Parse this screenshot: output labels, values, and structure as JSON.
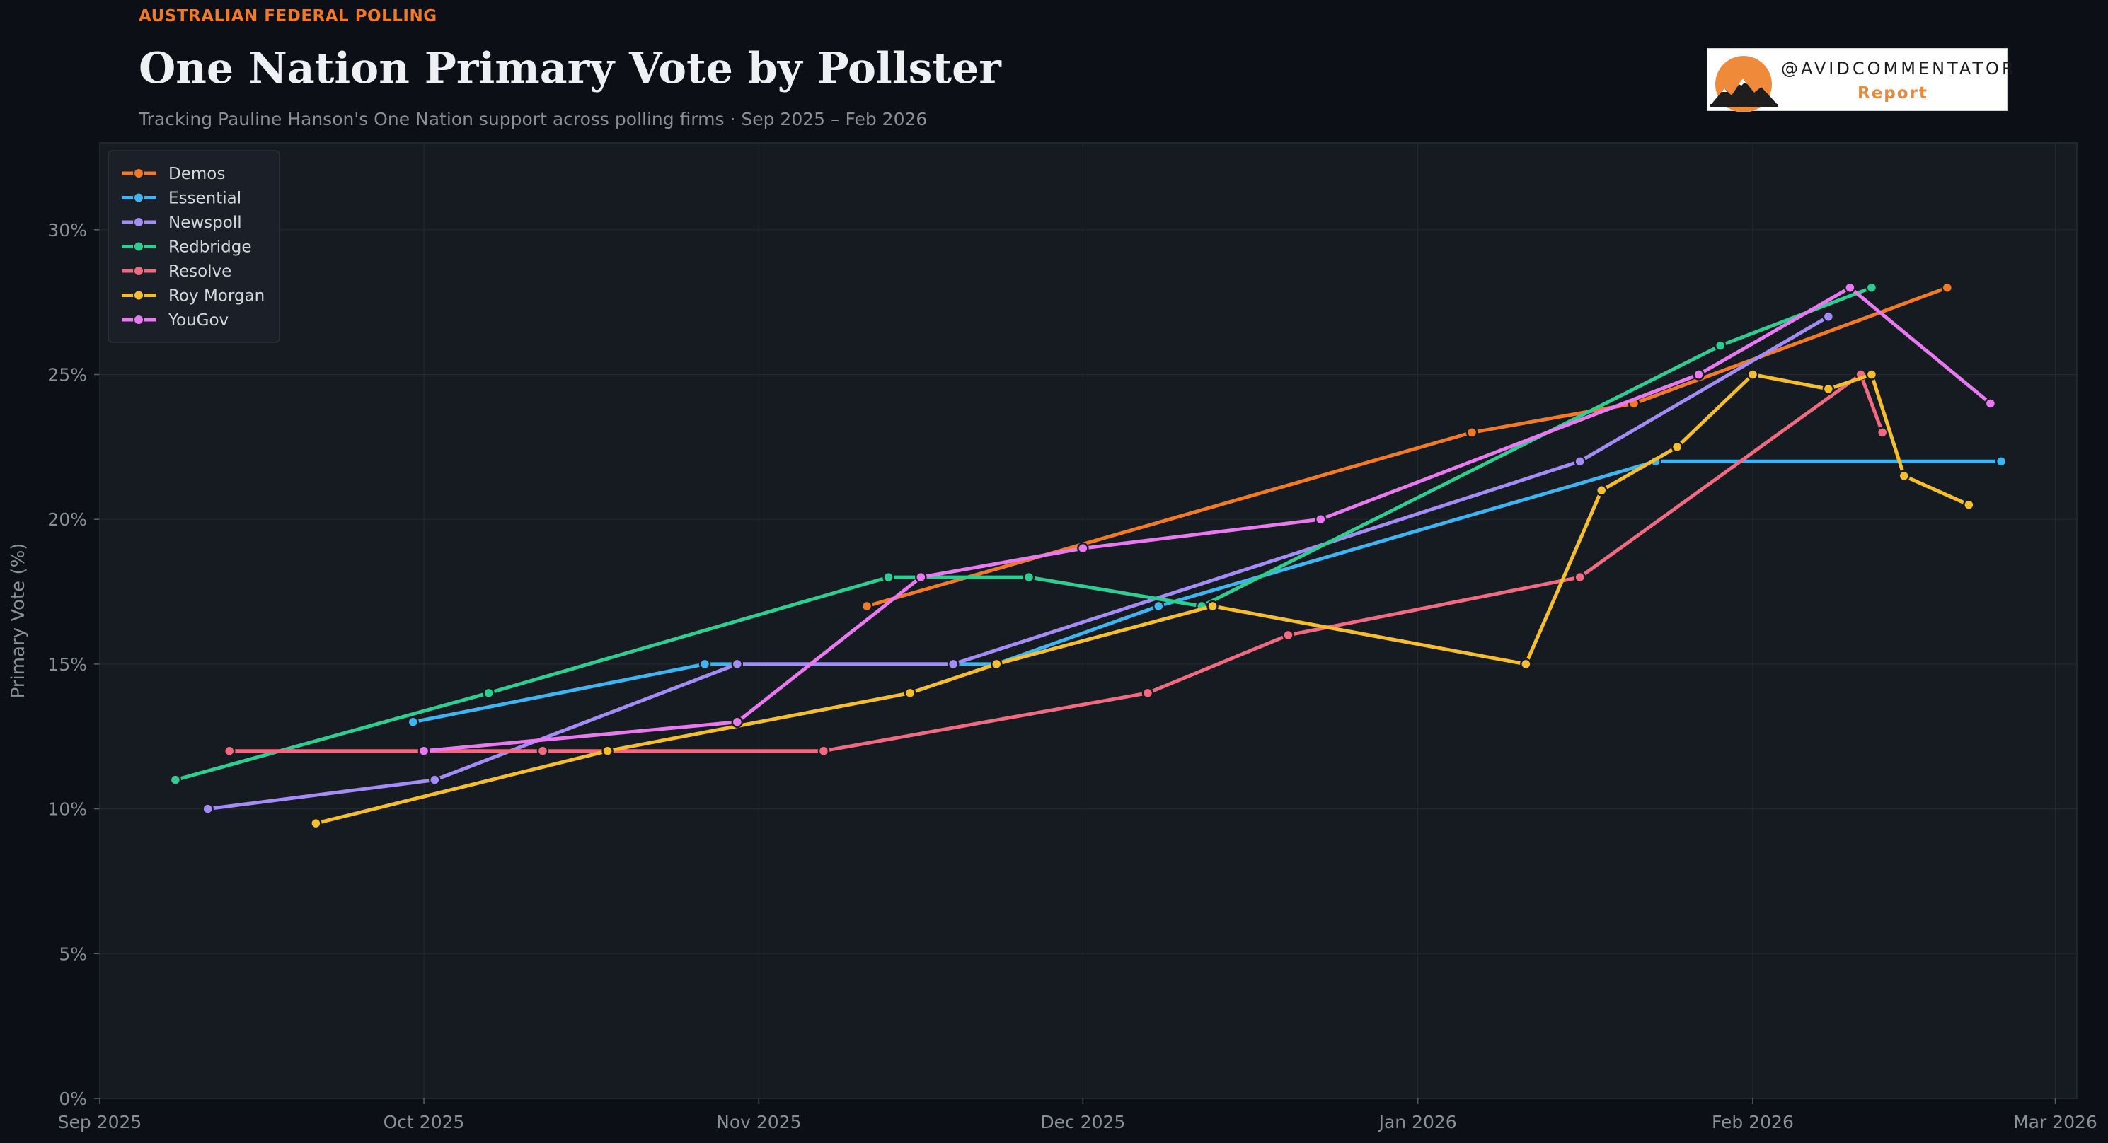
{
  "header": {
    "kicker": "AUSTRALIAN FEDERAL POLLING",
    "title": "One Nation Primary Vote by Pollster",
    "subtitle": "Tracking Pauline Hanson's One Nation support across polling firms  ·  Sep 2025 – Feb 2026"
  },
  "logo": {
    "handle": "@AVIDCOMMENTATOR",
    "report": "Report",
    "icon": "mountain-sun-logo"
  },
  "colors": {
    "background": "#0c0f15",
    "plot_background": "#161a21",
    "grid": "#232831",
    "text": "#8a8f99",
    "accent": "#f07a28"
  },
  "chart_data": {
    "type": "line",
    "title": "One Nation Primary Vote by Pollster",
    "subtitle": "Tracking Pauline Hanson's One Nation support across polling firms  ·  Sep 2025 – Feb 2026",
    "xlabel": "",
    "ylabel": "Primary Vote (%)",
    "x_type": "date",
    "xlim": [
      "2025-09-01",
      "2026-03-03"
    ],
    "ylim": [
      0,
      33
    ],
    "x_ticks": [
      {
        "date": "2025-09-01",
        "label": "Sep 2025"
      },
      {
        "date": "2025-10-01",
        "label": "Oct 2025"
      },
      {
        "date": "2025-11-01",
        "label": "Nov 2025"
      },
      {
        "date": "2025-12-01",
        "label": "Dec 2025"
      },
      {
        "date": "2026-01-01",
        "label": "Jan 2026"
      },
      {
        "date": "2026-02-01",
        "label": "Feb 2026"
      },
      {
        "date": "2026-03-01",
        "label": "Mar 2026"
      }
    ],
    "y_ticks": [
      {
        "value": 0,
        "label": "0%"
      },
      {
        "value": 5,
        "label": "5%"
      },
      {
        "value": 10,
        "label": "10%"
      },
      {
        "value": 15,
        "label": "15%"
      },
      {
        "value": 20,
        "label": "20%"
      },
      {
        "value": 25,
        "label": "25%"
      },
      {
        "value": 30,
        "label": "30%"
      }
    ],
    "grid": true,
    "legend_position": "top-left",
    "series": [
      {
        "name": "Demos",
        "color": "#f07a28",
        "points": [
          [
            "2025-11-11",
            17
          ],
          [
            "2026-01-06",
            23
          ],
          [
            "2026-01-21",
            24
          ],
          [
            "2026-02-19",
            28
          ]
        ]
      },
      {
        "name": "Essential",
        "color": "#3fb4f0",
        "points": [
          [
            "2025-09-30",
            13
          ],
          [
            "2025-10-27",
            15
          ],
          [
            "2025-10-30",
            15
          ],
          [
            "2025-11-19",
            15
          ],
          [
            "2025-11-23",
            15
          ],
          [
            "2025-12-08",
            17
          ],
          [
            "2026-01-23",
            22
          ],
          [
            "2026-02-24",
            22
          ]
        ]
      },
      {
        "name": "Newspoll",
        "color": "#a48cf5",
        "points": [
          [
            "2025-09-11",
            10
          ],
          [
            "2025-10-02",
            11
          ],
          [
            "2025-10-30",
            15
          ],
          [
            "2025-11-19",
            15
          ],
          [
            "2026-01-16",
            22
          ],
          [
            "2026-02-08",
            27
          ]
        ]
      },
      {
        "name": "Redbridge",
        "color": "#30cc90",
        "points": [
          [
            "2025-09-08",
            11
          ],
          [
            "2025-10-07",
            14
          ],
          [
            "2025-11-13",
            18
          ],
          [
            "2025-11-26",
            18
          ],
          [
            "2025-12-12",
            17
          ],
          [
            "2026-01-29",
            26
          ],
          [
            "2026-02-12",
            28
          ]
        ]
      },
      {
        "name": "Resolve",
        "color": "#f06b82",
        "points": [
          [
            "2025-09-13",
            12
          ],
          [
            "2025-10-01",
            12
          ],
          [
            "2025-10-12",
            12
          ],
          [
            "2025-11-07",
            12
          ],
          [
            "2025-12-07",
            14
          ],
          [
            "2025-12-20",
            16
          ],
          [
            "2026-01-16",
            18
          ],
          [
            "2026-02-11",
            25
          ],
          [
            "2026-02-13",
            23
          ]
        ]
      },
      {
        "name": "Roy Morgan",
        "color": "#f5be30",
        "points": [
          [
            "2025-09-21",
            9.5
          ],
          [
            "2025-10-18",
            12
          ],
          [
            "2025-11-15",
            14
          ],
          [
            "2025-11-23",
            15
          ],
          [
            "2025-12-13",
            17
          ],
          [
            "2026-01-11",
            15
          ],
          [
            "2026-01-18",
            21
          ],
          [
            "2026-01-25",
            22.5
          ],
          [
            "2026-02-01",
            25
          ],
          [
            "2026-02-08",
            24.5
          ],
          [
            "2026-02-12",
            25
          ],
          [
            "2026-02-15",
            21.5
          ],
          [
            "2026-02-21",
            20.5
          ]
        ]
      },
      {
        "name": "YouGov",
        "color": "#e87af0",
        "points": [
          [
            "2025-10-01",
            12
          ],
          [
            "2025-10-30",
            13
          ],
          [
            "2025-11-16",
            18
          ],
          [
            "2025-12-01",
            19
          ],
          [
            "2025-12-23",
            20
          ],
          [
            "2026-01-27",
            25
          ],
          [
            "2026-02-10",
            28
          ],
          [
            "2026-02-23",
            24
          ]
        ]
      }
    ]
  }
}
